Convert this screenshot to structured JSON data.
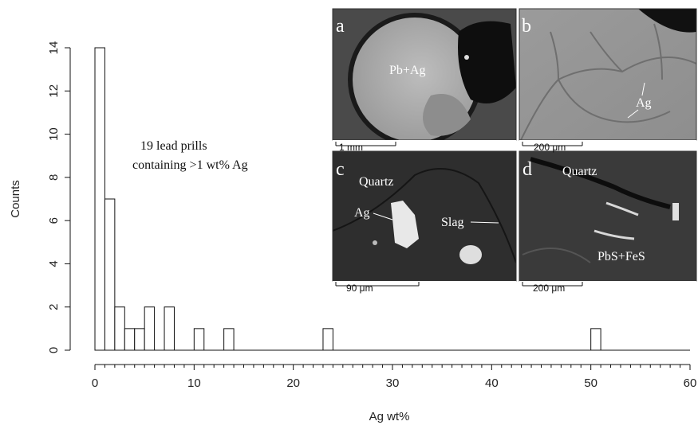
{
  "chart_data": {
    "type": "bar",
    "title": "",
    "xlabel": "Ag wt%",
    "ylabel": "Counts",
    "xlim": [
      0,
      60
    ],
    "ylim": [
      0,
      14
    ],
    "x_ticks": [
      "0",
      "10",
      "20",
      "30",
      "40",
      "50",
      "60"
    ],
    "y_ticks": [
      "0",
      "2",
      "4",
      "6",
      "8",
      "10",
      "12",
      "14"
    ],
    "bin_width": 1,
    "bins": [
      {
        "start": 0,
        "end": 1,
        "count": 14
      },
      {
        "start": 1,
        "end": 2,
        "count": 7
      },
      {
        "start": 2,
        "end": 3,
        "count": 2
      },
      {
        "start": 3,
        "end": 4,
        "count": 1
      },
      {
        "start": 4,
        "end": 5,
        "count": 1
      },
      {
        "start": 5,
        "end": 6,
        "count": 2
      },
      {
        "start": 7,
        "end": 8,
        "count": 2
      },
      {
        "start": 10,
        "end": 11,
        "count": 1
      },
      {
        "start": 13,
        "end": 14,
        "count": 1
      },
      {
        "start": 23,
        "end": 24,
        "count": 1
      },
      {
        "start": 50,
        "end": 51,
        "count": 1
      }
    ],
    "grid": false,
    "annotation": [
      "19 lead prills",
      "containing >1 wt% Ag"
    ]
  },
  "inset": {
    "panels": [
      {
        "letter": "a",
        "labels": [
          "Pb+Ag"
        ],
        "scale_bar": "1 mm"
      },
      {
        "letter": "b",
        "labels": [
          "Ag"
        ],
        "scale_bar": "200 μm"
      },
      {
        "letter": "c",
        "labels": [
          "Quartz",
          "Ag",
          "Slag"
        ],
        "scale_bar": "90 μm"
      },
      {
        "letter": "d",
        "labels": [
          "Quartz",
          "PbS+FeS"
        ],
        "scale_bar": "200 μm"
      }
    ]
  }
}
